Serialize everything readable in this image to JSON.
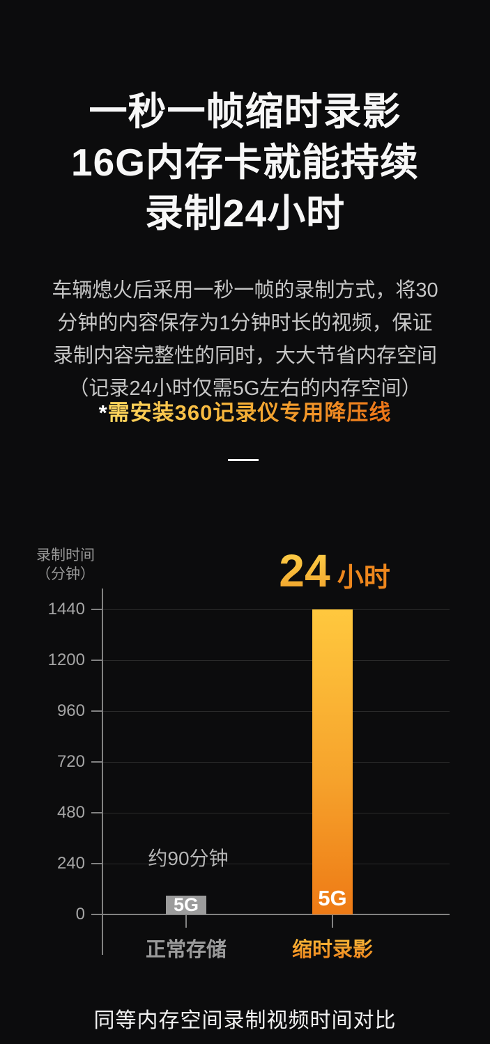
{
  "page": {
    "title_lines": [
      "一秒一帧缩时录影",
      "16G内存卡就能持续",
      "录制24小时"
    ],
    "body_lines": [
      "车辆熄火后采用一秒一帧的录制方式，将30",
      "分钟的内容保存为1分钟时长的视频，保证",
      "录制内容完整性的同时，大大节省内存空间",
      "（记录24小时仅需5G左右的内存空间）"
    ],
    "note_asterisk": "*",
    "note_text": "需安装360记录仪专用降压线"
  },
  "colors": {
    "background": "#0c0c0d",
    "accent_gold": "#ffc83e",
    "accent_orange": "#ee7a15",
    "bar_gray": "#9c9c9c",
    "axis_gray": "#828282",
    "grid_gray": "#2b2b2b",
    "text_white": "#f7f7f7",
    "text_gray": "#c7c7c7"
  },
  "chart_data": {
    "type": "bar",
    "title": "同等内存空间录制视频时间对比",
    "ylabel_lines": [
      "录制时间",
      "（分钟）"
    ],
    "xlabel": "",
    "yticks": [
      0,
      240,
      480,
      720,
      960,
      1200,
      1440
    ],
    "ylim": [
      0,
      1560
    ],
    "grid": true,
    "legend": "none",
    "categories": [
      "正常存储",
      "缩时录影"
    ],
    "series": [
      {
        "name": "录制时间（分钟）",
        "values": [
          90,
          1440
        ]
      }
    ],
    "bars": [
      {
        "category": "正常存储",
        "value": 90,
        "value_label": "约90分钟",
        "size_label": "5G",
        "color": "#9c9c9c"
      },
      {
        "category": "缩时录影",
        "value": 1440,
        "value_big": "24",
        "value_unit": "小时",
        "size_label": "5G",
        "color_top": "#ffc83e",
        "color_bottom": "#ee7a15"
      }
    ]
  }
}
